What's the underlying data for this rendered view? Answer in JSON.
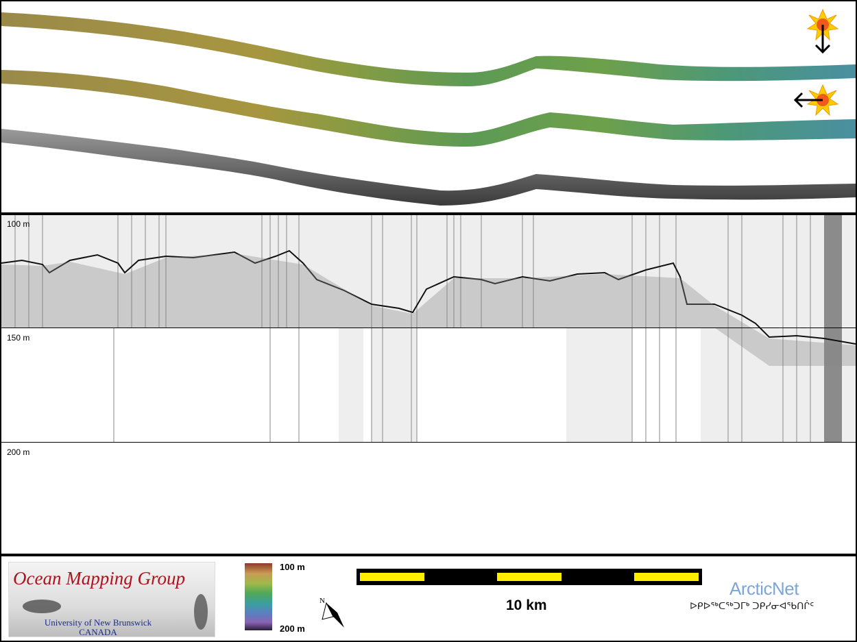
{
  "profile": {
    "depth_labels": [
      "100 m",
      "150 m",
      "200 m"
    ]
  },
  "legend": {
    "logo_title": "Ocean Mapping Group",
    "logo_line1": "University of New Brunswick",
    "logo_line2": "CANADA",
    "colorbar_top": "100 m",
    "colorbar_bottom": "200 m",
    "scale_label": "10 km",
    "north_letter": "N",
    "arcticnet_name": "ArcticNet",
    "arcticnet_syllabics": "ᐅᑭᐅᖅᑕᖅᑐᒥᒃ ᑐᑭᓯᓂᐊᖃᑎᒌᑦ"
  },
  "colors": {
    "scale_fill": "#ffee00",
    "sun_marker": "#ffcc00",
    "logo_title": "#b0121b",
    "arcticnet": "#7ba6d6"
  },
  "icons": [
    "sun-marker-icon",
    "arrow-down-icon",
    "arrow-left-icon",
    "north-arrow-icon"
  ]
}
